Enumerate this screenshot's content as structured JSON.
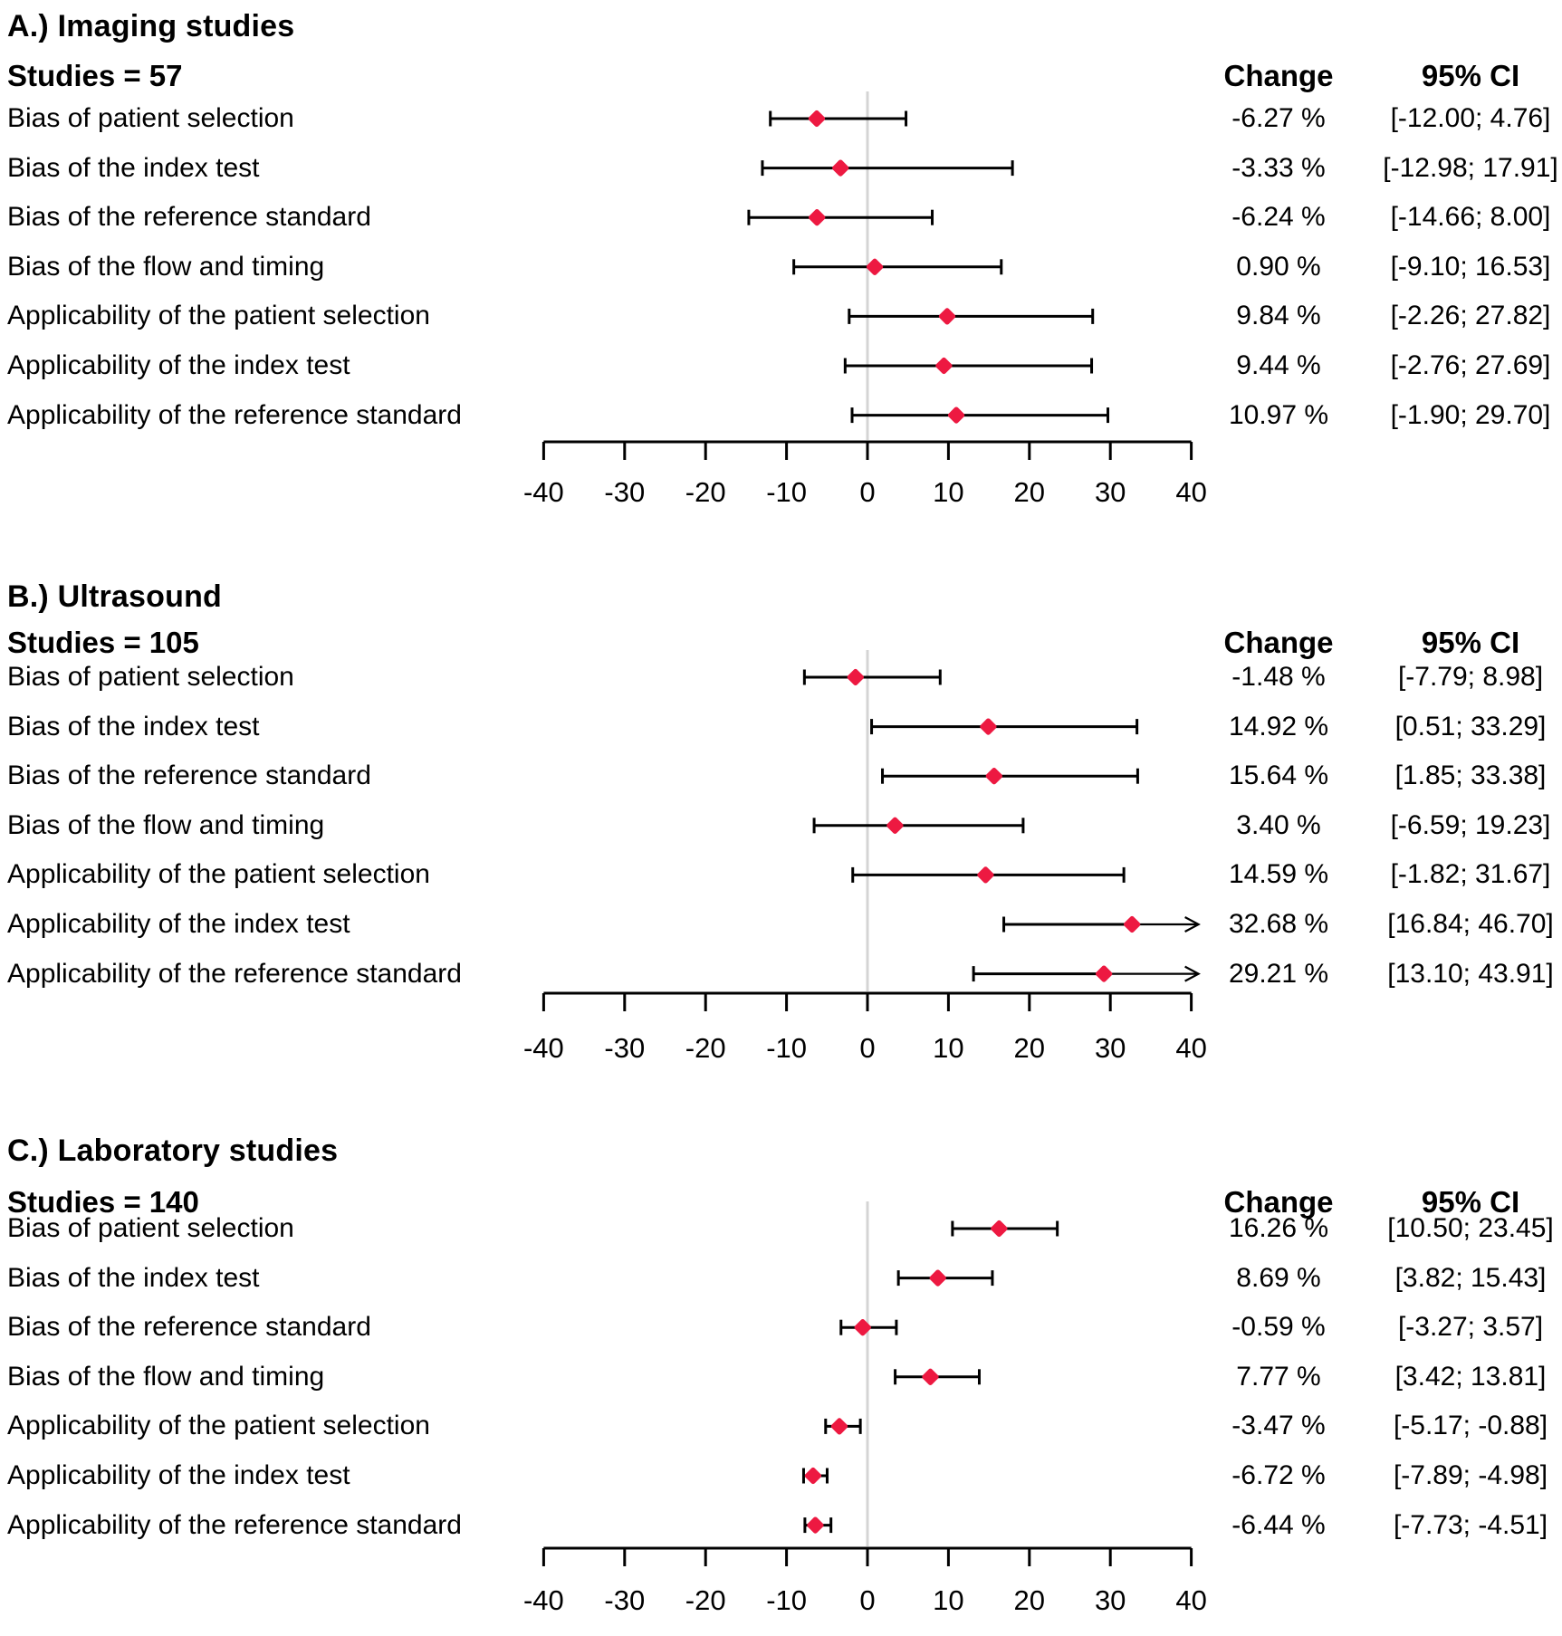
{
  "figure": {
    "axis": {
      "ticks": [
        "-40",
        "-30",
        "-20",
        "-10",
        "0",
        "10",
        "20",
        "30",
        "40"
      ],
      "xlim": [
        -40,
        40
      ]
    },
    "colors": {
      "marker": "#ed1941",
      "zero_line": "#d4d4d4",
      "line": "#000000",
      "text": "#000000"
    }
  },
  "chart_data": [
    {
      "type": "forest",
      "panel": "A",
      "title": "A.) Imaging studies",
      "studies": "Studies = 57",
      "change_header": "Change",
      "ci_header": "95% CI",
      "xlim": [
        -40,
        40
      ],
      "x_ticks": [
        -40,
        -30,
        -20,
        -10,
        0,
        10,
        20,
        30,
        40
      ],
      "rows": [
        {
          "label": "Bias of patient selection",
          "estimate": -6.27,
          "lo": -12.0,
          "hi": 4.76,
          "change": "-6.27 %",
          "ci": "[-12.00; 4.76]"
        },
        {
          "label": "Bias of the index test",
          "estimate": -3.33,
          "lo": -12.98,
          "hi": 17.91,
          "change": "-3.33 %",
          "ci": "[-12.98; 17.91]"
        },
        {
          "label": "Bias of the reference standard",
          "estimate": -6.24,
          "lo": -14.66,
          "hi": 8.0,
          "change": "-6.24 %",
          "ci": "[-14.66; 8.00]"
        },
        {
          "label": "Bias of the flow and timing",
          "estimate": 0.9,
          "lo": -9.1,
          "hi": 16.53,
          "change": "0.90 %",
          "ci": "[-9.10; 16.53]"
        },
        {
          "label": "Applicability of the patient selection",
          "estimate": 9.84,
          "lo": -2.26,
          "hi": 27.82,
          "change": "9.84 %",
          "ci": "[-2.26; 27.82]"
        },
        {
          "label": "Applicability of the index test",
          "estimate": 9.44,
          "lo": -2.76,
          "hi": 27.69,
          "change": "9.44 %",
          "ci": "[-2.76; 27.69]"
        },
        {
          "label": "Applicability of the reference standard",
          "estimate": 10.97,
          "lo": -1.9,
          "hi": 29.7,
          "change": "10.97 %",
          "ci": "[-1.90; 29.70]"
        }
      ]
    },
    {
      "type": "forest",
      "panel": "B",
      "title": "B.) Ultrasound",
      "studies": "Studies = 105",
      "change_header": "Change",
      "ci_header": "95% CI",
      "xlim": [
        -40,
        40
      ],
      "x_ticks": [
        -40,
        -30,
        -20,
        -10,
        0,
        10,
        20,
        30,
        40
      ],
      "rows": [
        {
          "label": "Bias of patient selection",
          "estimate": -1.48,
          "lo": -7.79,
          "hi": 8.98,
          "change": "-1.48 %",
          "ci": "[-7.79; 8.98]"
        },
        {
          "label": "Bias of the index test",
          "estimate": 14.92,
          "lo": 0.51,
          "hi": 33.29,
          "change": "14.92 %",
          "ci": "[0.51; 33.29]"
        },
        {
          "label": "Bias of the reference standard",
          "estimate": 15.64,
          "lo": 1.85,
          "hi": 33.38,
          "change": "15.64 %",
          "ci": "[1.85; 33.38]"
        },
        {
          "label": "Bias of the flow and timing",
          "estimate": 3.4,
          "lo": -6.59,
          "hi": 19.23,
          "change": "3.40 %",
          "ci": "[-6.59; 19.23]"
        },
        {
          "label": "Applicability of the patient selection",
          "estimate": 14.59,
          "lo": -1.82,
          "hi": 31.67,
          "change": "14.59 %",
          "ci": "[-1.82; 31.67]"
        },
        {
          "label": "Applicability of the index test",
          "estimate": 32.68,
          "lo": 16.84,
          "hi": 46.7,
          "change": "32.68 %",
          "ci": "[16.84; 46.70]"
        },
        {
          "label": "Applicability of the reference standard",
          "estimate": 29.21,
          "lo": 13.1,
          "hi": 43.91,
          "change": "29.21 %",
          "ci": "[13.10; 43.91]"
        }
      ]
    },
    {
      "type": "forest",
      "panel": "C",
      "title": "C.) Laboratory studies",
      "studies": "Studies = 140",
      "change_header": "Change",
      "ci_header": "95% CI",
      "xlim": [
        -40,
        40
      ],
      "x_ticks": [
        -40,
        -30,
        -20,
        -10,
        0,
        10,
        20,
        30,
        40
      ],
      "rows": [
        {
          "label": "Bias of patient selection",
          "estimate": 16.26,
          "lo": 10.5,
          "hi": 23.45,
          "change": "16.26 %",
          "ci": "[10.50; 23.45]"
        },
        {
          "label": "Bias of the index test",
          "estimate": 8.69,
          "lo": 3.82,
          "hi": 15.43,
          "change": "8.69 %",
          "ci": "[3.82; 15.43]"
        },
        {
          "label": "Bias of the reference standard",
          "estimate": -0.59,
          "lo": -3.27,
          "hi": 3.57,
          "change": "-0.59 %",
          "ci": "[-3.27; 3.57]"
        },
        {
          "label": "Bias of the flow and timing",
          "estimate": 7.77,
          "lo": 3.42,
          "hi": 13.81,
          "change": "7.77 %",
          "ci": "[3.42; 13.81]"
        },
        {
          "label": "Applicability of the patient selection",
          "estimate": -3.47,
          "lo": -5.17,
          "hi": -0.88,
          "change": "-3.47 %",
          "ci": "[-5.17; -0.88]"
        },
        {
          "label": "Applicability of the index test",
          "estimate": -6.72,
          "lo": -7.89,
          "hi": -4.98,
          "change": "-6.72 %",
          "ci": "[-7.89; -4.98]"
        },
        {
          "label": "Applicability of the reference standard",
          "estimate": -6.44,
          "lo": -7.73,
          "hi": -4.51,
          "change": "-6.44 %",
          "ci": "[-7.73; -4.51]"
        }
      ]
    }
  ]
}
